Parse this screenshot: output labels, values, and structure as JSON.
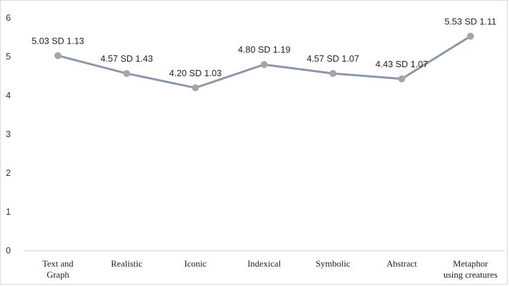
{
  "chart_data": {
    "type": "line",
    "categories": [
      [
        "Text and",
        "Graph"
      ],
      [
        "Realistic"
      ],
      [
        "Iconic"
      ],
      [
        "Indexical"
      ],
      [
        "Symbolic"
      ],
      [
        "Abstract"
      ],
      [
        "Metaphor",
        "using creatures"
      ]
    ],
    "series": [
      {
        "values": [
          5.03,
          4.57,
          4.2,
          4.8,
          4.57,
          4.43,
          5.53
        ],
        "sd": [
          1.13,
          1.43,
          1.03,
          1.19,
          1.07,
          1.07,
          1.11
        ],
        "data_labels": [
          "5.03 SD 1.13",
          "4.57 SD 1.43",
          "4.20 SD 1.03",
          "4.80 SD 1.19",
          "4.57 SD 1.07",
          "4.43 SD 1.07",
          "5.53 SD 1.11"
        ]
      }
    ],
    "ylim": [
      0,
      6
    ],
    "yticks": [
      0,
      1,
      2,
      3,
      4,
      5,
      6
    ],
    "grid": false,
    "legend": "none",
    "line_color": "#8b96aa",
    "marker_color": "#a5a5a5"
  }
}
